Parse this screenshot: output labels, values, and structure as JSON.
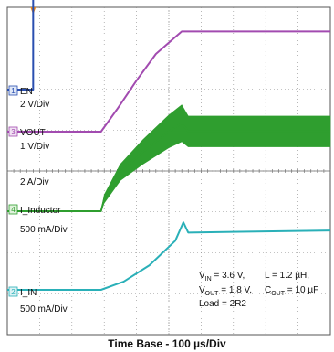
{
  "chart_data": {
    "type": "line",
    "title": "",
    "xlabel": "Time Base - 100 µs/Div",
    "x_unit": "µs",
    "xlim": [
      0,
      1000
    ],
    "grid": true,
    "grid_divisions": {
      "x": 10,
      "y": 8
    },
    "background": "#ffffff",
    "channels": [
      {
        "id": "1",
        "name": "EN",
        "scale": "2 V/Div",
        "color": "#2a4fb0",
        "x": [
          0,
          80,
          80,
          81,
          1000
        ],
        "divs": [
          0,
          0,
          3.85,
          3.85,
          3.85
        ]
      },
      {
        "id": "3",
        "name": "VOUT",
        "scale": "1 V/Div",
        "color": "#a24bb0",
        "x": [
          0,
          290,
          340,
          400,
          460,
          540,
          1000
        ],
        "divs": [
          0,
          0,
          0.55,
          1.25,
          1.9,
          2.45,
          2.45
        ]
      },
      {
        "id": "4",
        "name": "I_Inductor",
        "scale": "500 mA/Div",
        "color": "#2f9e2f",
        "x": [
          0,
          290,
          300,
          350,
          420,
          500,
          540,
          560,
          1000
        ],
        "divs": [
          0,
          0,
          0.3,
          0.95,
          1.45,
          1.95,
          2.15,
          1.95,
          1.95
        ],
        "ripple_divs": [
          0,
          0,
          0.2,
          0.4,
          0.6,
          0.8,
          0.9,
          0.75,
          0.75
        ]
      },
      {
        "id": "2",
        "name": "I_IN",
        "scale": "500 mA/Div",
        "color": "#2ab0b8",
        "x": [
          0,
          290,
          360,
          440,
          520,
          545,
          560,
          1000
        ],
        "divs": [
          0,
          0,
          0.2,
          0.6,
          1.2,
          1.65,
          1.4,
          1.45
        ]
      }
    ],
    "extra_scale_label": "2 A/Div",
    "annotations": {
      "line1_left": {
        "main": "V",
        "sub": "IN",
        "rest": " = 3.6 V,"
      },
      "line1_right": "L = 1.2 µH,",
      "line2_left": {
        "main": "V",
        "sub": "OUT",
        "rest": " = 1.8 V,"
      },
      "line2_right": {
        "main": "C",
        "sub": "OUT",
        "rest": " = 10 µF"
      },
      "line3": "Load = 2R2"
    }
  }
}
